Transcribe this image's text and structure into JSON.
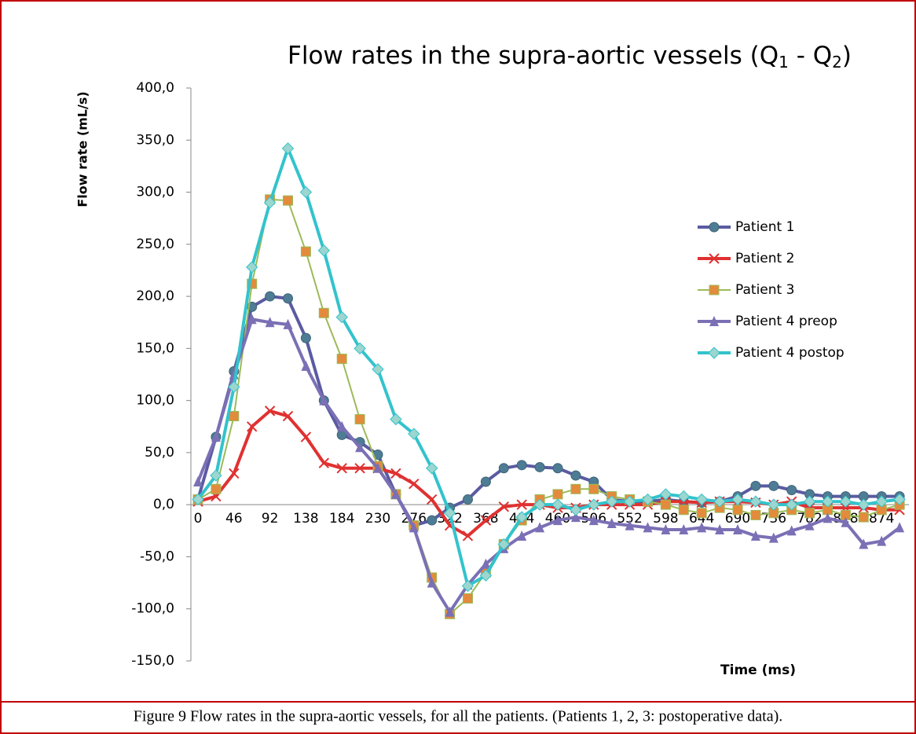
{
  "chart_data": {
    "type": "line",
    "title_parts": [
      "Flow rates in the supra-aortic vessels (Q",
      "1",
      " - Q",
      "2",
      ")"
    ],
    "y_label": "Flow rate (mL/s)",
    "x_label": "Time (ms)",
    "caption": "Figure 9 Flow rates in the supra-aortic vessels, for all the patients. (Patients 1, 2, 3: postoperative data).",
    "categories": [
      0,
      null,
      46,
      null,
      92,
      null,
      138,
      null,
      184,
      null,
      230,
      null,
      276,
      null,
      322,
      null,
      368,
      null,
      414,
      null,
      460,
      null,
      506,
      null,
      552,
      null,
      598,
      null,
      644,
      null,
      690,
      null,
      736,
      null,
      782,
      null,
      828,
      null,
      874,
      null
    ],
    "ylim": [
      -150,
      400
    ],
    "yticks": [
      {
        "value": -150,
        "label": "-150,0"
      },
      {
        "value": -100,
        "label": "-100,0"
      },
      {
        "value": -50,
        "label": "-50,0"
      },
      {
        "value": 0,
        "label": "0,0"
      },
      {
        "value": 50,
        "label": "50,0"
      },
      {
        "value": 100,
        "label": "100,0"
      },
      {
        "value": 150,
        "label": "150,0"
      },
      {
        "value": 200,
        "label": "200,0"
      },
      {
        "value": 250,
        "label": "250,0"
      },
      {
        "value": 300,
        "label": "300,0"
      },
      {
        "value": 350,
        "label": "350,0"
      },
      {
        "value": 400,
        "label": "400,0"
      }
    ],
    "legend": "right",
    "series": [
      {
        "name": "Patient 1",
        "color": "#5b5ba3",
        "marker": "circle",
        "marker_color": "#4e7c94",
        "values": [
          5,
          65,
          128,
          190,
          200,
          198,
          160,
          100,
          67,
          60,
          48,
          10,
          -20,
          -15,
          -3,
          5,
          22,
          35,
          38,
          36,
          35,
          28,
          22,
          5,
          3,
          3,
          5,
          3,
          2,
          3,
          8,
          18,
          18,
          14,
          10,
          8,
          8,
          8,
          8,
          8
        ]
      },
      {
        "name": "Patient 2",
        "color": "#e03131",
        "marker": "x",
        "marker_color": "#e03131",
        "values": [
          3,
          8,
          30,
          75,
          90,
          85,
          65,
          40,
          35,
          35,
          35,
          30,
          20,
          5,
          -20,
          -30,
          -15,
          -2,
          0,
          0,
          -3,
          -3,
          0,
          0,
          0,
          0,
          3,
          3,
          2,
          3,
          3,
          2,
          0,
          3,
          -3,
          -3,
          -3,
          -3,
          -5,
          -5
        ]
      },
      {
        "name": "Patient 3",
        "color": "#9bbb59",
        "marker": "square",
        "marker_color": "#e38b3c",
        "values": [
          5,
          15,
          85,
          212,
          293,
          292,
          243,
          184,
          140,
          82,
          37,
          10,
          -20,
          -70,
          -105,
          -90,
          -65,
          -38,
          -15,
          5,
          10,
          15,
          15,
          8,
          5,
          3,
          0,
          -5,
          -8,
          -3,
          -5,
          -10,
          -8,
          -5,
          -8,
          -5,
          -10,
          -12,
          -5,
          0
        ]
      },
      {
        "name": "Patient 4 preop",
        "color": "#7b70b5",
        "marker": "triangle",
        "marker_color": "#7b70b5",
        "values": [
          22,
          65,
          125,
          178,
          175,
          173,
          133,
          100,
          75,
          55,
          35,
          10,
          -22,
          -75,
          -103,
          -77,
          -57,
          -42,
          -30,
          -22,
          -15,
          -12,
          -15,
          -18,
          -20,
          -22,
          -24,
          -24,
          -22,
          -24,
          -24,
          -30,
          -32,
          -25,
          -20,
          -13,
          -17,
          -38,
          -35,
          -22
        ]
      },
      {
        "name": "Patient 4 postop",
        "color": "#33c3cc",
        "marker": "diamond",
        "marker_color": "#9bd6cf",
        "values": [
          5,
          28,
          113,
          228,
          290,
          342,
          300,
          244,
          180,
          150,
          130,
          82,
          68,
          35,
          -8,
          -78,
          -68,
          -38,
          -12,
          0,
          0,
          -5,
          0,
          3,
          3,
          5,
          10,
          8,
          5,
          3,
          5,
          3,
          0,
          0,
          3,
          3,
          3,
          0,
          3,
          5
        ]
      }
    ]
  }
}
